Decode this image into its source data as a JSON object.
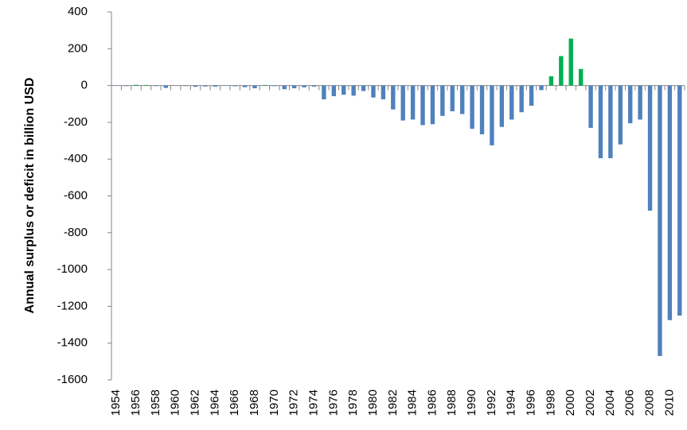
{
  "chart_data": {
    "type": "bar",
    "y_label": "Annual surplus or deficit in billion USD",
    "categories": [
      "1954",
      null,
      "1956",
      null,
      "1958",
      null,
      "1960",
      null,
      "1962",
      null,
      "1964",
      null,
      "1966",
      null,
      "1968",
      null,
      "1970",
      null,
      "1972",
      null,
      "1974",
      null,
      "1976",
      null,
      "1978",
      null,
      "1980",
      null,
      "1982",
      null,
      "1984",
      null,
      "1986",
      null,
      "1988",
      null,
      "1990",
      null,
      "1992",
      null,
      "1994",
      null,
      "1996",
      null,
      "1998",
      null,
      "2000",
      null,
      "2002",
      null,
      "2004",
      null,
      "2006",
      null,
      "2008",
      null,
      "2010",
      null
    ],
    "values": [
      -1,
      -3,
      4,
      3,
      -3,
      -13,
      0,
      -3,
      -7,
      -5,
      -6,
      -1,
      -4,
      -9,
      -15,
      3,
      -3,
      -20,
      -15,
      -10,
      -6,
      -75,
      -58,
      -50,
      -55,
      -30,
      -65,
      -75,
      -130,
      -190,
      -185,
      -215,
      -210,
      -165,
      -140,
      -155,
      -235,
      -265,
      -325,
      -225,
      -185,
      -145,
      -110,
      -25,
      50,
      160,
      255,
      90,
      -230,
      -395,
      -395,
      -320,
      -205,
      -185,
      -680,
      -1470,
      -1275,
      -1250
    ],
    "color": "#4f81bd",
    "positive_color": "#00b050",
    "ylim": [
      -1600,
      400
    ],
    "yticks": [
      -1600,
      -1400,
      -1200,
      -1000,
      -800,
      -600,
      -400,
      -200,
      0,
      200,
      400
    ],
    "grid": false
  }
}
